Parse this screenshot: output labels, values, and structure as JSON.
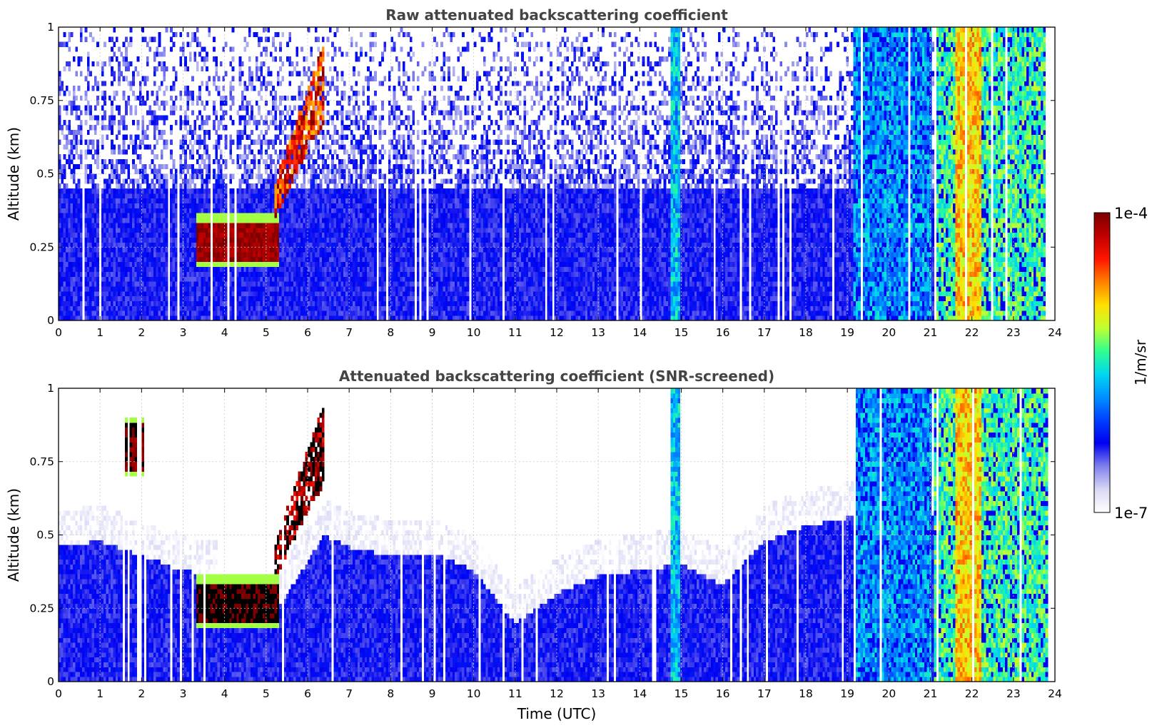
{
  "colors": {
    "background": "#ffffff",
    "axes": "#000000",
    "title_text": "#444444",
    "grid": "#c8c8c8",
    "colormap": [
      "#ffffff",
      "#d8d8f5",
      "#8080ee",
      "#0000f0",
      "#0040ff",
      "#0090ff",
      "#00d8f0",
      "#30ff90",
      "#c0ff30",
      "#ffe000",
      "#ff8000",
      "#ff1500",
      "#c00000",
      "#7a0000"
    ],
    "saturated": "#000000"
  },
  "colorbar": {
    "top_label": "1e-4",
    "bottom_label": "1e-7",
    "unit_label": "1/m/sr",
    "scale": "log",
    "range": [
      1e-07,
      0.0001
    ]
  },
  "chart_data": [
    {
      "type": "heatmap",
      "title": "Raw attenuated backscattering coefficient",
      "xlabel": "",
      "ylabel": "Altitude (km)",
      "xlim": [
        0,
        24
      ],
      "ylim": [
        0,
        1
      ],
      "x_ticks": [
        "0",
        "1",
        "2",
        "3",
        "4",
        "5",
        "6",
        "7",
        "8",
        "9",
        "10",
        "11",
        "12",
        "13",
        "14",
        "15",
        "16",
        "17",
        "18",
        "19",
        "20",
        "21",
        "22",
        "23",
        "24"
      ],
      "y_ticks": [
        "0",
        "0.25",
        "0.5",
        "0.75",
        "1"
      ],
      "grid": true,
      "screened": false,
      "noise_floor_km": 0.45,
      "features": [
        {
          "kind": "low_cloud",
          "t_start": 3.3,
          "t_end": 5.3,
          "base_km": 0.18,
          "top_km": 0.36,
          "log_value": -4.1
        },
        {
          "kind": "rising_cloud",
          "t_start": 5.2,
          "t_end": 6.4,
          "base_km": 0.35,
          "top_km": 0.95,
          "log_value": -4.4
        },
        {
          "kind": "column",
          "t_start": 14.75,
          "t_end": 14.95,
          "log_value": -5.7
        },
        {
          "kind": "column_block",
          "t_start": 19.15,
          "t_end": 21.05,
          "log_value": -5.8
        },
        {
          "kind": "column_block",
          "t_start": 21.1,
          "t_end": 23.8,
          "log_value": -5.4
        },
        {
          "kind": "peak_band",
          "t_start": 21.6,
          "t_end": 22.2,
          "log_value": -4.9
        }
      ]
    },
    {
      "type": "heatmap",
      "title": "Attenuated backscattering coefficient (SNR-screened)",
      "xlabel": "Time (UTC)",
      "ylabel": "Altitude (km)",
      "xlim": [
        0,
        24
      ],
      "ylim": [
        0,
        1
      ],
      "x_ticks": [
        "0",
        "1",
        "2",
        "3",
        "4",
        "5",
        "6",
        "7",
        "8",
        "9",
        "10",
        "11",
        "12",
        "13",
        "14",
        "15",
        "16",
        "17",
        "18",
        "19",
        "20",
        "21",
        "22",
        "23",
        "24"
      ],
      "y_ticks": [
        "0",
        "0.25",
        "0.5",
        "0.75",
        "1"
      ],
      "grid": true,
      "screened": true,
      "boundary_layer_top_km": [
        [
          0,
          0.58
        ],
        [
          1,
          0.6
        ],
        [
          2,
          0.55
        ],
        [
          3,
          0.5
        ],
        [
          3.8,
          0.48
        ],
        [
          3.85,
          0.35
        ],
        [
          5.2,
          0.35
        ],
        [
          6.4,
          0.62
        ],
        [
          7,
          0.58
        ],
        [
          8,
          0.55
        ],
        [
          9,
          0.56
        ],
        [
          10,
          0.5
        ],
        [
          11,
          0.32
        ],
        [
          12,
          0.42
        ],
        [
          13,
          0.48
        ],
        [
          14,
          0.5
        ],
        [
          15,
          0.52
        ],
        [
          16,
          0.45
        ],
        [
          17,
          0.6
        ],
        [
          18,
          0.65
        ],
        [
          19,
          0.68
        ],
        [
          24,
          0.68
        ]
      ],
      "features": [
        {
          "kind": "low_cloud",
          "t_start": 3.3,
          "t_end": 5.3,
          "base_km": 0.18,
          "top_km": 0.36,
          "log_value": -3.9
        },
        {
          "kind": "rising_cloud",
          "t_start": 5.2,
          "t_end": 6.4,
          "base_km": 0.35,
          "top_km": 0.95,
          "log_value": -4.0
        },
        {
          "kind": "cloud_streak",
          "t_start": 1.6,
          "t_end": 2.1,
          "base_km": 0.7,
          "top_km": 0.9,
          "log_value": -4.0
        },
        {
          "kind": "column",
          "t_start": 14.75,
          "t_end": 14.95,
          "log_value": -5.7
        },
        {
          "kind": "column_block",
          "t_start": 19.15,
          "t_end": 21.05,
          "log_value": -5.8
        },
        {
          "kind": "column_block",
          "t_start": 21.1,
          "t_end": 23.8,
          "log_value": -5.4
        },
        {
          "kind": "peak_band",
          "t_start": 21.6,
          "t_end": 22.2,
          "log_value": -4.9
        }
      ]
    }
  ]
}
